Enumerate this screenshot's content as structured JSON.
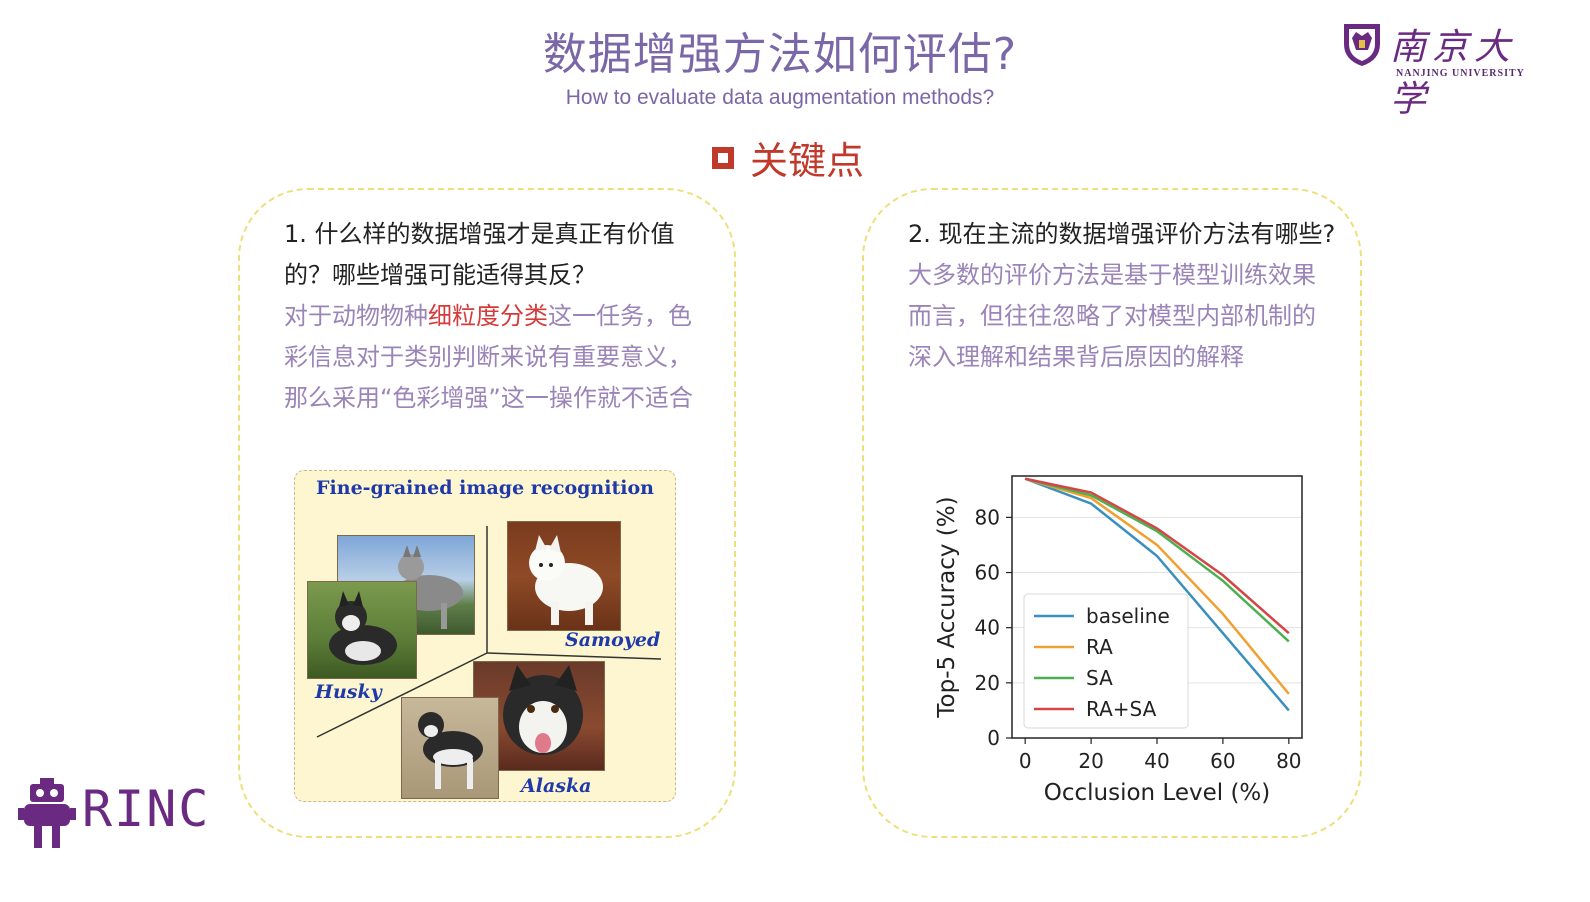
{
  "header": {
    "title": "数据增强方法如何评估?",
    "subtitle": "How to evaluate data augmentation methods?",
    "keypoint_label": "关键点"
  },
  "logo": {
    "name": "南京大学",
    "sub": "NANJING UNIVERSITY",
    "rinc": "RINC"
  },
  "left": {
    "question": "1. 什么样的数据增强才是真正有价值的？哪些增强可能适得其反？",
    "answer_pre": "对于动物物种",
    "answer_highlight": "细粒度分类",
    "answer_post": "这一任务，色彩信息对于类别判断来说有重要意义，那么采用“色彩增强”这一操作就不适合",
    "figure": {
      "title": "Fine-grained image recognition",
      "labels": [
        "Husky",
        "Samoyed",
        "Alaska"
      ]
    }
  },
  "right": {
    "question": "2. 现在主流的数据增强评价方法有哪些?",
    "answer": "大多数的评价方法是基于模型训练效果而言，但往往忽略了对模型内部机制的深入理解和结果背后原因的解释"
  },
  "chart_data": {
    "type": "line",
    "xlabel": "Occlusion Level (%)",
    "ylabel": "Top-5 Accuracy (%)",
    "xlim": [
      -4,
      84
    ],
    "ylim": [
      0,
      95
    ],
    "xticks": [
      0,
      20,
      40,
      60,
      80
    ],
    "yticks": [
      0,
      20,
      40,
      60,
      80
    ],
    "grid": true,
    "legend_position": "lower-left",
    "x": [
      0,
      20,
      40,
      60,
      80
    ],
    "series": [
      {
        "name": "baseline",
        "color": "#3a8fbf",
        "values": [
          94,
          85,
          66,
          38,
          10
        ]
      },
      {
        "name": "RA",
        "color": "#f0a030",
        "values": [
          94,
          87,
          70,
          45,
          16
        ]
      },
      {
        "name": "SA",
        "color": "#4caf50",
        "values": [
          94,
          88,
          75,
          57,
          35
        ]
      },
      {
        "name": "RA+SA",
        "color": "#d64545",
        "values": [
          94,
          89,
          76,
          59,
          38
        ]
      }
    ]
  }
}
